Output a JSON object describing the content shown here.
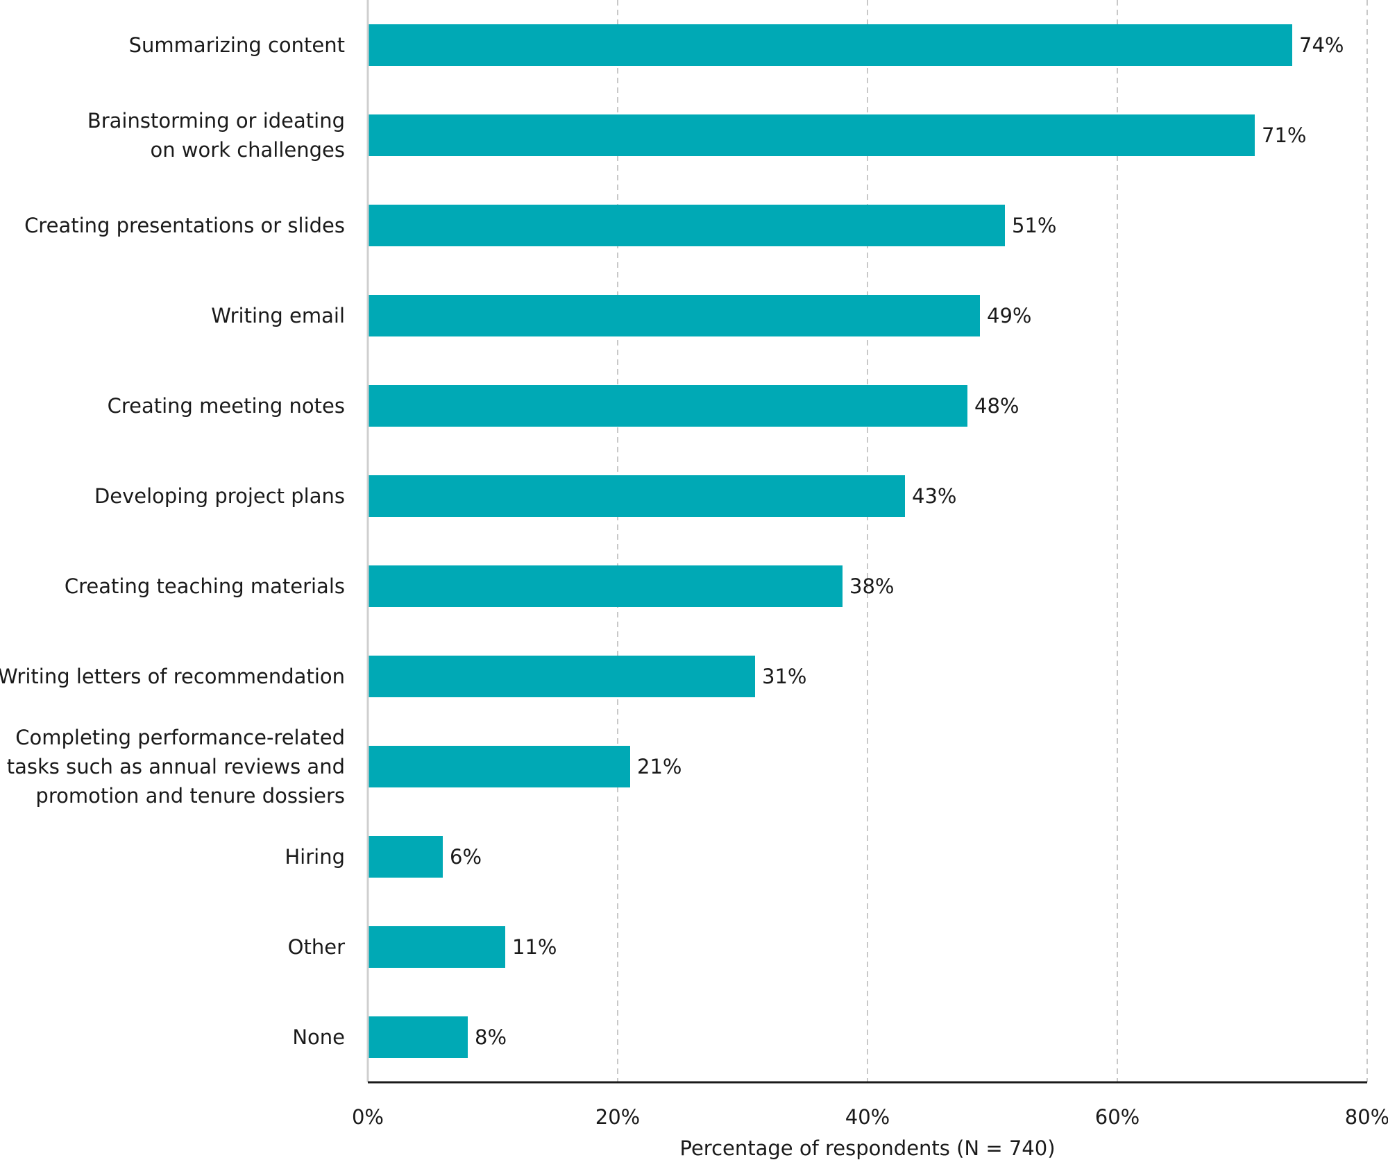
{
  "chart_data": {
    "type": "bar",
    "orientation": "horizontal",
    "categories": [
      "Summarizing content",
      "Brainstorming or ideating on work challenges",
      "Creating presentations or slides",
      "Writing email",
      "Creating meeting notes",
      "Developing project plans",
      "Creating teaching materials",
      "Writing letters of recommendation",
      "Completing performance-related tasks such as annual reviews and promotion and tenure dossiers",
      "Hiring",
      "Other",
      "None"
    ],
    "category_lines": [
      [
        "Summarizing content"
      ],
      [
        "Brainstorming or ideating",
        "on work challenges"
      ],
      [
        "Creating presentations or slides"
      ],
      [
        "Writing email"
      ],
      [
        "Creating meeting notes"
      ],
      [
        "Developing project plans"
      ],
      [
        "Creating teaching materials"
      ],
      [
        "Writing letters of recommendation"
      ],
      [
        "Completing performance-related",
        "tasks such as annual reviews and",
        "promotion and tenure dossiers"
      ],
      [
        "Hiring"
      ],
      [
        "Other"
      ],
      [
        "None"
      ]
    ],
    "values": [
      74,
      71,
      51,
      49,
      48,
      43,
      38,
      31,
      21,
      6,
      11,
      8
    ],
    "value_labels": [
      "74%",
      "71%",
      "51%",
      "49%",
      "48%",
      "43%",
      "38%",
      "31%",
      "21%",
      "6%",
      "11%",
      "8%"
    ],
    "xlim": [
      0,
      80
    ],
    "xticks": [
      0,
      20,
      40,
      60,
      80
    ],
    "xtick_labels": [
      "0%",
      "20%",
      "40%",
      "60%",
      "80%"
    ],
    "xlabel": "Percentage of respondents (N = 740)",
    "ylabel": "",
    "title": "",
    "grid": "vertical dashed",
    "bar_color": "#00a9b5"
  }
}
